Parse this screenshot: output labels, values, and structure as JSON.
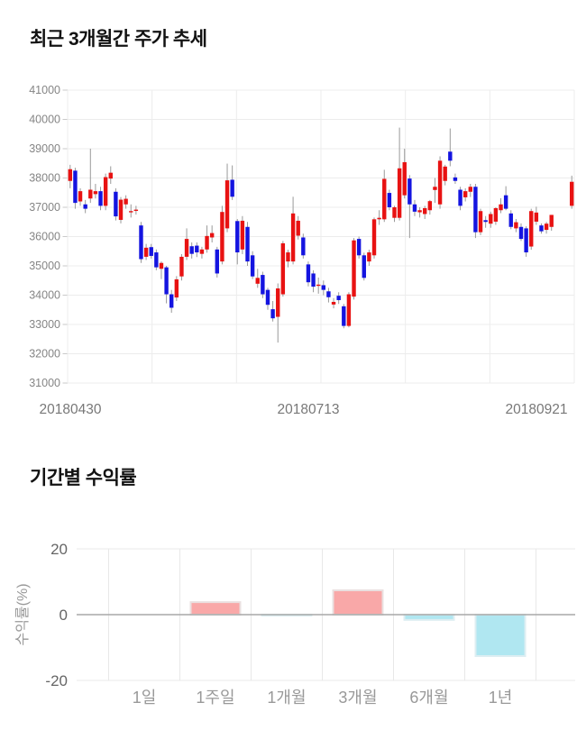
{
  "page": {
    "background": "#ffffff"
  },
  "price_section": {
    "title": "최근 3개월간 주가 추세"
  },
  "returns_section": {
    "title": "기간별 수익률"
  },
  "chart_data": [
    {
      "type": "candlestick",
      "title": "최근 3개월간 주가 추세",
      "ylim": [
        31000,
        41000
      ],
      "y_ticks": [
        41000,
        40000,
        39000,
        38000,
        37000,
        36000,
        35000,
        34000,
        33000,
        32000,
        31000
      ],
      "x_tick_labels": [
        "20180430",
        "20180713",
        "20180921"
      ],
      "n_slots": 100,
      "grid": true,
      "legend": "none",
      "colors": {
        "up": "#e81212",
        "down": "#1414e0",
        "wick": "#999999",
        "grid": "#ececec",
        "axis_line": "#c9c9c9",
        "axis_text": "#858585",
        "date_text": "#787878"
      },
      "candles_format": [
        "slot",
        "open",
        "high",
        "low",
        "close"
      ],
      "candles": [
        [
          0,
          37900,
          38450,
          37650,
          38300
        ],
        [
          1,
          38250,
          38350,
          36950,
          37150
        ],
        [
          2,
          37200,
          37650,
          37050,
          37550
        ],
        [
          3,
          37100,
          37250,
          36800,
          36950
        ],
        [
          4,
          37300,
          39000,
          37150,
          37600
        ],
        [
          5,
          37450,
          37800,
          37300,
          37550
        ],
        [
          6,
          37550,
          37700,
          36900,
          37050
        ],
        [
          7,
          37050,
          38150,
          36900,
          38030
        ],
        [
          8,
          37980,
          38400,
          37800,
          38180
        ],
        [
          9,
          37530,
          37650,
          36550,
          36690
        ],
        [
          10,
          36570,
          37350,
          36450,
          37260
        ],
        [
          11,
          37100,
          37410,
          36950,
          37290
        ],
        [
          12,
          36830,
          37100,
          36650,
          36870
        ],
        [
          13,
          36880,
          37050,
          36750,
          36920
        ],
        [
          14,
          36380,
          36500,
          35100,
          35230
        ],
        [
          15,
          35310,
          35750,
          35200,
          35620
        ],
        [
          16,
          35640,
          35750,
          35250,
          35340
        ],
        [
          17,
          35460,
          35560,
          34850,
          34950
        ],
        [
          18,
          34900,
          35150,
          34550,
          35100
        ],
        [
          19,
          34950,
          35000,
          33720,
          34030
        ],
        [
          20,
          34030,
          34180,
          33400,
          33570
        ],
        [
          21,
          33920,
          34650,
          33800,
          34540
        ],
        [
          22,
          34640,
          35400,
          34500,
          35310
        ],
        [
          23,
          35310,
          36280,
          35200,
          35920
        ],
        [
          24,
          35670,
          35800,
          35250,
          35410
        ],
        [
          25,
          35690,
          35800,
          35300,
          35460
        ],
        [
          26,
          35410,
          35650,
          35250,
          35560
        ],
        [
          27,
          35560,
          36380,
          35450,
          36020
        ],
        [
          28,
          35970,
          36380,
          35800,
          36120
        ],
        [
          29,
          35560,
          35650,
          34600,
          34740
        ],
        [
          30,
          35150,
          37050,
          35050,
          36840
        ],
        [
          31,
          36280,
          38490,
          36150,
          37920
        ],
        [
          32,
          37940,
          38430,
          37250,
          37360
        ],
        [
          33,
          36530,
          36600,
          35050,
          35460
        ],
        [
          34,
          35560,
          36700,
          35400,
          36540
        ],
        [
          35,
          36330,
          36500,
          35000,
          35150
        ],
        [
          36,
          35360,
          35500,
          34550,
          34640
        ],
        [
          37,
          34390,
          34900,
          34250,
          34590
        ],
        [
          38,
          34690,
          34800,
          33900,
          34030
        ],
        [
          39,
          34180,
          34250,
          33500,
          33670
        ],
        [
          40,
          33520,
          33800,
          33100,
          33210
        ],
        [
          41,
          33260,
          34400,
          32380,
          34230
        ],
        [
          42,
          34030,
          35850,
          33950,
          35770
        ],
        [
          43,
          35150,
          35550,
          34950,
          35460
        ],
        [
          44,
          35150,
          37360,
          35050,
          36790
        ],
        [
          45,
          36030,
          36700,
          35900,
          36540
        ],
        [
          46,
          35970,
          36100,
          35250,
          35360
        ],
        [
          47,
          35050,
          35150,
          34300,
          34440
        ],
        [
          48,
          34740,
          34850,
          34100,
          34290
        ],
        [
          49,
          34330,
          34600,
          34050,
          34360
        ],
        [
          50,
          34340,
          34500,
          34000,
          34180
        ],
        [
          51,
          34130,
          34250,
          33750,
          33930
        ],
        [
          52,
          33680,
          33900,
          33550,
          33770
        ],
        [
          53,
          33980,
          34100,
          33700,
          33830
        ],
        [
          54,
          33620,
          33700,
          32870,
          32950
        ],
        [
          55,
          32950,
          34100,
          32900,
          34030
        ],
        [
          56,
          33950,
          35950,
          33850,
          35870
        ],
        [
          57,
          35920,
          36000,
          35250,
          35360
        ],
        [
          58,
          35360,
          35450,
          34500,
          34590
        ],
        [
          59,
          35150,
          35550,
          35000,
          35460
        ],
        [
          60,
          35360,
          36650,
          35250,
          36590
        ],
        [
          61,
          36590,
          36900,
          36400,
          36640
        ],
        [
          62,
          36590,
          38280,
          36500,
          37970
        ],
        [
          63,
          37490,
          37600,
          36900,
          37000
        ],
        [
          64,
          36640,
          37050,
          36500,
          37000
        ],
        [
          65,
          36640,
          39720,
          36550,
          38330
        ],
        [
          66,
          37410,
          39000,
          37300,
          38540
        ],
        [
          67,
          37980,
          38100,
          35950,
          37100
        ],
        [
          68,
          37100,
          37250,
          36700,
          36850
        ],
        [
          69,
          36830,
          37000,
          36650,
          36900
        ],
        [
          70,
          36770,
          37050,
          36600,
          36970
        ],
        [
          71,
          36900,
          37250,
          36750,
          37210
        ],
        [
          72,
          37590,
          38000,
          37150,
          37700
        ],
        [
          73,
          37100,
          38740,
          36950,
          38590
        ],
        [
          74,
          37900,
          38450,
          37750,
          38390
        ],
        [
          75,
          38900,
          39690,
          38400,
          38590
        ],
        [
          76,
          38020,
          38150,
          37800,
          37900
        ],
        [
          77,
          37600,
          37700,
          36900,
          37050
        ],
        [
          78,
          37340,
          37650,
          37200,
          37550
        ],
        [
          79,
          37530,
          37800,
          37350,
          37700
        ],
        [
          80,
          37700,
          37800,
          35950,
          36150
        ],
        [
          81,
          36150,
          36950,
          36050,
          36870
        ],
        [
          82,
          36560,
          36700,
          36300,
          36500
        ],
        [
          83,
          36440,
          36850,
          36300,
          36770
        ],
        [
          84,
          36510,
          37000,
          36400,
          36970
        ],
        [
          85,
          36900,
          37310,
          36800,
          37100
        ],
        [
          86,
          37410,
          37720,
          36900,
          36950
        ],
        [
          87,
          36790,
          36900,
          36250,
          36330
        ],
        [
          88,
          36280,
          36600,
          36150,
          36490
        ],
        [
          89,
          36330,
          36450,
          35850,
          35920
        ],
        [
          90,
          36280,
          36350,
          35310,
          35460
        ],
        [
          91,
          35660,
          36950,
          35550,
          36870
        ],
        [
          92,
          36510,
          37020,
          36400,
          36820
        ],
        [
          93,
          36380,
          36450,
          36100,
          36180
        ],
        [
          94,
          36230,
          36500,
          36100,
          36440
        ],
        [
          95,
          36330,
          36740,
          36200,
          36740
        ],
        [
          99,
          37050,
          38080,
          36950,
          37870
        ]
      ]
    },
    {
      "type": "bar",
      "title": "기간별 수익률",
      "categories": [
        "1일",
        "1주일",
        "1개월",
        "3개월",
        "6개월",
        "1년"
      ],
      "values": [
        0,
        3.8,
        -0.3,
        7.4,
        -1.6,
        -12.6
      ],
      "ylabel": "수익률(%)",
      "y_ticks": [
        20,
        0,
        -20
      ],
      "ylim": [
        -20,
        20
      ],
      "grid": true,
      "colors": {
        "positive": "#f9a8a8",
        "positive_border": "#eae0e0",
        "negative": "#b0e7f1",
        "negative_border": "#ddeef2",
        "zero_line": "#a8a8a8",
        "grid": "#e8e8e8",
        "tick_text": "#666666",
        "category_text": "#999999",
        "ylabel_text": "#999999"
      }
    }
  ]
}
